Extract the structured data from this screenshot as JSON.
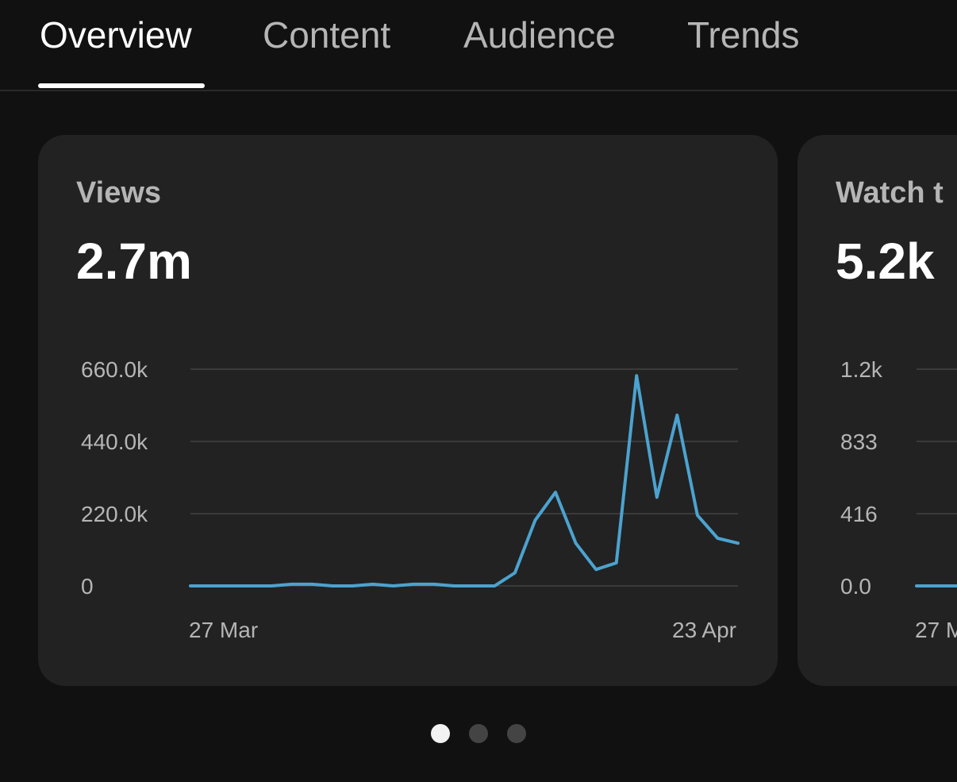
{
  "tabs": [
    {
      "label": "Overview",
      "active": true
    },
    {
      "label": "Content",
      "active": false
    },
    {
      "label": "Audience",
      "active": false
    },
    {
      "label": "Trends",
      "active": false
    }
  ],
  "cards": [
    {
      "title": "Views",
      "value": "2.7m"
    },
    {
      "title": "Watch t",
      "value": "5.2k"
    }
  ],
  "colors": {
    "background": "#111111",
    "card": "#222222",
    "line": "#4ba3cf",
    "grid": "#3a3a3a",
    "muted_text": "#b5b5b5"
  },
  "pagination": {
    "count": 3,
    "active_index": 0
  },
  "chart_data": [
    {
      "type": "line",
      "x_start_label": "27 Mar",
      "x_end_label": "23 Apr",
      "y_tick_labels": [
        "0",
        "220.0k",
        "440.0k",
        "660.0k"
      ],
      "ylim": [
        0,
        660000
      ],
      "grid": true,
      "series": [
        {
          "values": [
            0,
            0,
            0,
            0,
            0,
            5000,
            5000,
            0,
            0,
            5000,
            0,
            5000,
            5000,
            0,
            0,
            0,
            40000,
            200000,
            285000,
            130000,
            50000,
            70000,
            640000,
            270000,
            520000,
            215000,
            145000,
            130000
          ]
        }
      ]
    },
    {
      "type": "line",
      "x_start_label": "27 M",
      "y_tick_labels": [
        "0.0",
        "416",
        "833",
        "1.2k"
      ],
      "ylim": [
        0,
        1200
      ],
      "grid": true,
      "series": [
        {
          "values": [
            0,
            0
          ]
        }
      ]
    }
  ]
}
